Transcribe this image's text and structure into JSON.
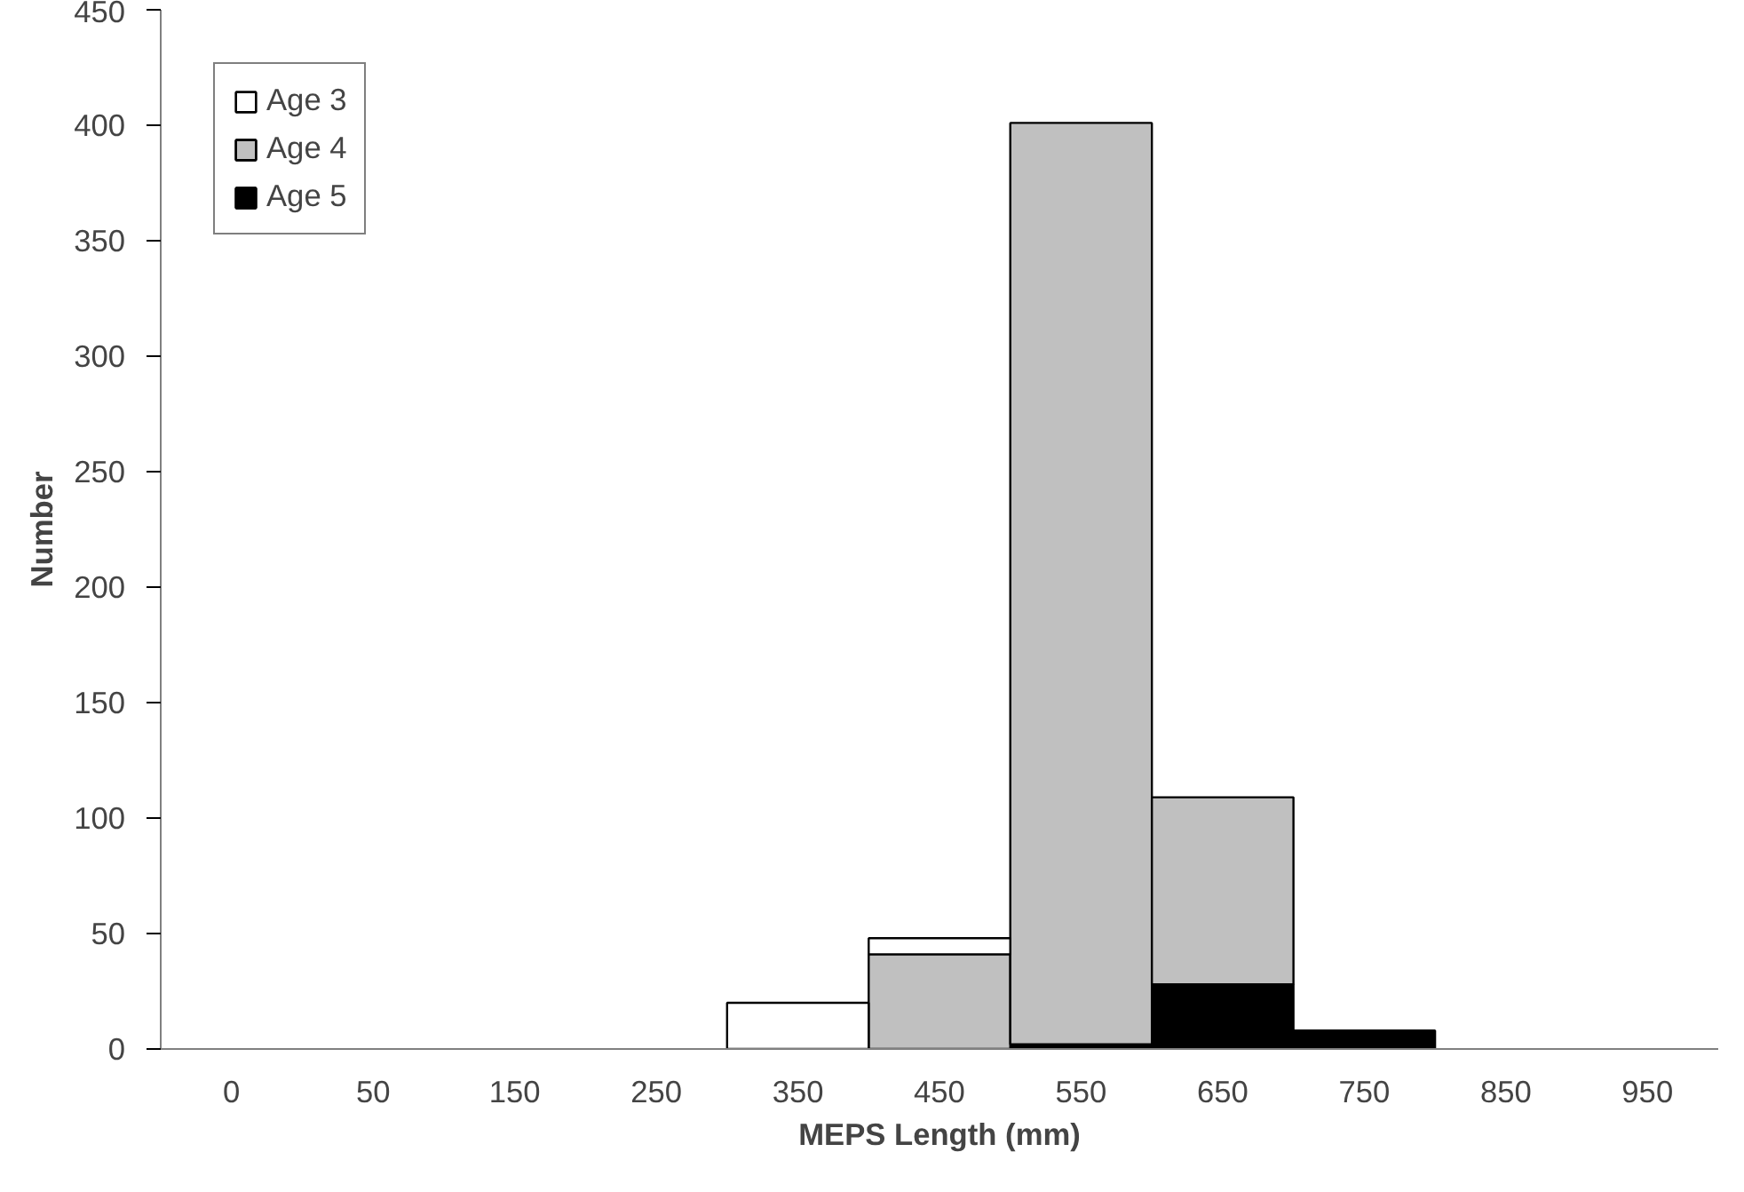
{
  "chart_data": {
    "type": "bar",
    "stacked": true,
    "xlabel": "MEPS Length (mm)",
    "ylabel": "Number",
    "categories": [
      "0",
      "50",
      "150",
      "250",
      "350",
      "450",
      "550",
      "650",
      "750",
      "850",
      "950"
    ],
    "series": [
      {
        "name": "Age 5",
        "color": "#000000",
        "values": [
          0,
          0,
          0,
          0,
          0,
          0,
          2,
          28,
          8,
          0,
          0
        ]
      },
      {
        "name": "Age 4",
        "color": "#c0c0c0",
        "values": [
          0,
          0,
          0,
          0,
          0,
          41,
          399,
          81,
          0,
          0,
          0
        ]
      },
      {
        "name": "Age 3",
        "color": "#ffffff",
        "values": [
          0,
          0,
          0,
          0,
          20,
          7,
          0,
          0,
          0,
          0,
          0
        ]
      }
    ],
    "ylim": [
      0,
      450
    ],
    "yticks": [
      0,
      50,
      100,
      150,
      200,
      250,
      300,
      350,
      400,
      450
    ],
    "grid": false,
    "legend": "top left"
  }
}
